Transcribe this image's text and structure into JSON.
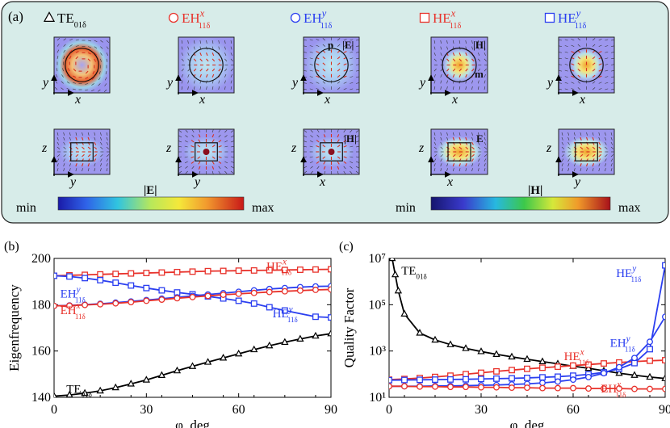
{
  "panel_a": {
    "label": "(a)",
    "modes": [
      {
        "name": "TE",
        "sub": "01δ",
        "sup": "",
        "symbol": "triangle",
        "color": "#000000"
      },
      {
        "name": "EH",
        "sub": "11δ",
        "sup": "x",
        "symbol": "circle",
        "color": "#e8322b"
      },
      {
        "name": "EH",
        "sub": "11δ",
        "sup": "y",
        "symbol": "circle",
        "color": "#2b3ff0"
      },
      {
        "name": "HE",
        "sub": "11δ",
        "sup": "x",
        "symbol": "square",
        "color": "#e8322b"
      },
      {
        "name": "HE",
        "sub": "11δ",
        "sup": "y",
        "symbol": "square",
        "color": "#2b3ff0"
      }
    ],
    "field_tags": {
      "top3": "|E|",
      "top3_vec": "p",
      "top4": "|H|",
      "top4_vec": "m",
      "bot3": "|H|",
      "bot4": "E"
    },
    "axes": {
      "top_x": "x",
      "top_y": "y",
      "bot_y": "y",
      "bot_z": "z",
      "bot4_x": "x"
    },
    "colorbars": [
      {
        "label": "|E|",
        "min": "min",
        "max": "max"
      },
      {
        "label": "|H|",
        "min": "min",
        "max": "max"
      }
    ]
  },
  "chart_data": [
    {
      "panel": "(b)",
      "type": "line",
      "xlabel": "φ, deg",
      "ylabel": "Eigenfrequency",
      "xlim": [
        0,
        90
      ],
      "ylim": [
        140,
        200
      ],
      "xticks": [
        0,
        30,
        60,
        90
      ],
      "yticks": [
        140,
        160,
        180,
        200
      ],
      "series": [
        {
          "name": "TE",
          "sub": "01δ",
          "sup": "",
          "color": "#000000",
          "marker": "triangle",
          "x": [
            0,
            5,
            10,
            15,
            20,
            25,
            30,
            35,
            40,
            45,
            50,
            55,
            60,
            65,
            70,
            75,
            80,
            85,
            90
          ],
          "y": [
            140.5,
            141,
            141.8,
            142.8,
            144.2,
            145.8,
            147.5,
            149.5,
            151.5,
            153.4,
            155.2,
            157,
            158.8,
            160.6,
            162.3,
            163.8,
            165.2,
            166.5,
            167.5
          ]
        },
        {
          "name": "HE",
          "sub": "11δ",
          "sup": "x",
          "color": "#e8322b",
          "marker": "square",
          "x": [
            0,
            5,
            10,
            15,
            20,
            25,
            30,
            35,
            40,
            45,
            50,
            55,
            60,
            65,
            70,
            75,
            80,
            85,
            90
          ],
          "y": [
            192.5,
            192.7,
            192.9,
            193.1,
            193.3,
            193.5,
            193.7,
            193.9,
            194.1,
            194.3,
            194.5,
            194.6,
            194.7,
            194.8,
            194.9,
            195,
            195.1,
            195.2,
            195.3
          ]
        },
        {
          "name": "HE",
          "sub": "11δ",
          "sup": "y",
          "color": "#2b3ff0",
          "marker": "square",
          "x": [
            0,
            5,
            10,
            15,
            20,
            25,
            30,
            35,
            40,
            45,
            50,
            55,
            60,
            65,
            70,
            75,
            85,
            90
          ],
          "y": [
            192.5,
            192.2,
            191.5,
            190.6,
            189.5,
            188.3,
            187.2,
            186.2,
            185.3,
            184.5,
            183.6,
            182.7,
            181.7,
            180.5,
            178.9,
            177.5,
            174.8,
            174.5
          ]
        },
        {
          "name": "EH",
          "sub": "11δ",
          "sup": "y",
          "color": "#2b3ff0",
          "marker": "circle",
          "x": [
            0,
            5,
            10,
            15,
            20,
            25,
            30,
            35,
            40,
            45,
            50,
            55,
            60,
            65,
            70,
            75,
            80,
            85,
            90
          ],
          "y": [
            179.5,
            179.7,
            180,
            180.4,
            180.9,
            181.4,
            182,
            182.6,
            183.2,
            183.8,
            184.4,
            185,
            185.6,
            186.2,
            186.8,
            187.2,
            187.6,
            187.9,
            188
          ]
        },
        {
          "name": "EH",
          "sub": "11δ",
          "sup": "x",
          "color": "#e8322b",
          "marker": "circle",
          "x": [
            0,
            5,
            10,
            15,
            20,
            25,
            30,
            35,
            40,
            45,
            50,
            55,
            60,
            65,
            70,
            75,
            80,
            85,
            90
          ],
          "y": [
            179.5,
            179.6,
            179.9,
            180.2,
            180.6,
            181.1,
            181.7,
            182.2,
            182.8,
            183.3,
            183.8,
            184.3,
            184.7,
            185.1,
            185.5,
            185.8,
            186.1,
            186.4,
            186.6
          ]
        }
      ],
      "labels": [
        {
          "text": "HE",
          "sub": "11δ",
          "sup": "x",
          "color": "#e8322b",
          "x": 69,
          "y": 195
        },
        {
          "text": "EH",
          "sub": "11δ",
          "sup": "y",
          "color": "#2b3ff0",
          "x": 2,
          "y": 183
        },
        {
          "text": "EH",
          "sub": "11δ",
          "sup": "x",
          "color": "#e8322b",
          "x": 2,
          "y": 176
        },
        {
          "text": "HE",
          "sub": "11δ",
          "sup": "y",
          "color": "#2b3ff0",
          "x": 71,
          "y": 174.5
        },
        {
          "text": "TE",
          "sub": "01δ",
          "sup": "",
          "color": "#000000",
          "x": 4,
          "y": 142
        }
      ]
    },
    {
      "panel": "(c)",
      "type": "line",
      "xlabel": "φ, deg",
      "ylabel": "Quality Factor",
      "yscale": "log",
      "xlim": [
        0,
        90
      ],
      "ylim": [
        10,
        10000000
      ],
      "xticks": [
        0,
        30,
        60,
        90
      ],
      "yticks": [
        10,
        1000,
        100000,
        10000000
      ],
      "yticklabels": [
        "10¹",
        "10³",
        "10⁵",
        "10⁷"
      ],
      "series": [
        {
          "name": "TE",
          "sub": "01δ",
          "sup": "",
          "color": "#000000",
          "marker": "triangle",
          "x": [
            1,
            2,
            3,
            5,
            10,
            15,
            20,
            25,
            30,
            35,
            40,
            45,
            50,
            55,
            60,
            65,
            70,
            75,
            80,
            85,
            90
          ],
          "y": [
            10000000,
            2000000,
            400000,
            40000,
            6000,
            3000,
            1900,
            1300,
            950,
            720,
            560,
            440,
            350,
            280,
            220,
            180,
            140,
            110,
            90,
            75,
            65
          ]
        },
        {
          "name": "HE",
          "sub": "11δ",
          "sup": "x",
          "color": "#e8322b",
          "marker": "square",
          "x": [
            0,
            5,
            10,
            15,
            20,
            25,
            30,
            35,
            40,
            45,
            50,
            55,
            60,
            65,
            70,
            75,
            80,
            85,
            90
          ],
          "y": [
            58,
            62,
            68,
            76,
            86,
            100,
            115,
            132,
            150,
            170,
            190,
            210,
            235,
            260,
            290,
            320,
            350,
            380,
            400
          ]
        },
        {
          "name": "HE",
          "sub": "11δ",
          "sup": "y",
          "color": "#2b3ff0",
          "marker": "square",
          "x": [
            0,
            5,
            10,
            15,
            20,
            25,
            30,
            35,
            40,
            45,
            50,
            55,
            60,
            65,
            70,
            75,
            80,
            85,
            90
          ],
          "y": [
            55,
            56,
            57,
            58,
            59,
            60,
            62,
            64,
            66,
            69,
            73,
            78,
            86,
            98,
            120,
            170,
            300,
            1200,
            5000000
          ]
        },
        {
          "name": "EH",
          "sub": "11δ",
          "sup": "y",
          "color": "#2b3ff0",
          "marker": "circle",
          "x": [
            0,
            5,
            10,
            15,
            20,
            25,
            30,
            35,
            40,
            45,
            50,
            55,
            60,
            65,
            70,
            75,
            80,
            85,
            90
          ],
          "y": [
            30,
            30,
            30,
            31,
            31,
            32,
            33,
            34,
            36,
            38,
            42,
            48,
            58,
            75,
            110,
            200,
            500,
            2500,
            30000
          ]
        },
        {
          "name": "EH",
          "sub": "11δ",
          "sup": "x",
          "color": "#e8322b",
          "marker": "circle",
          "x": [
            0,
            5,
            10,
            15,
            20,
            25,
            30,
            35,
            40,
            45,
            50,
            55,
            60,
            65,
            70,
            75,
            80,
            85,
            90
          ],
          "y": [
            30,
            30,
            29,
            29,
            28,
            28,
            27,
            27,
            26,
            26,
            25,
            25,
            25,
            24,
            24,
            24,
            23,
            23,
            23
          ]
        }
      ],
      "labels": [
        {
          "text": "TE",
          "sub": "01δ",
          "sup": "",
          "color": "#000000",
          "x": 4,
          "y": 2000000
        },
        {
          "text": "HE",
          "sub": "11δ",
          "sup": "y",
          "color": "#2b3ff0",
          "x": 74,
          "y": 1600000
        },
        {
          "text": "EH",
          "sub": "11δ",
          "sup": "y",
          "color": "#2b3ff0",
          "x": 72,
          "y": 1500
        },
        {
          "text": "HE",
          "sub": "11δ",
          "sup": "x",
          "color": "#e8322b",
          "x": 57,
          "y": 400
        },
        {
          "text": "EH",
          "sub": "11δ",
          "sup": "x",
          "color": "#e8322b",
          "x": 69,
          "y": 16
        }
      ]
    }
  ]
}
